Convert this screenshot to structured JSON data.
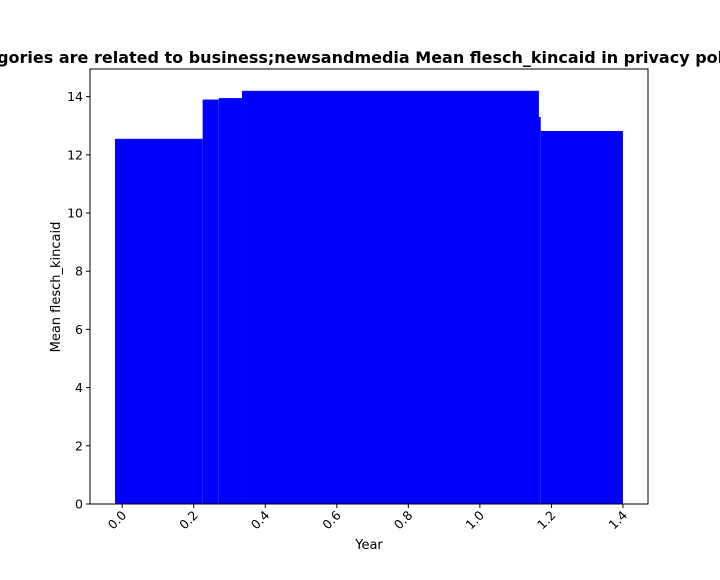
{
  "chart_data": {
    "type": "bar",
    "title": "Categories are related to business;newsandmedia Mean flesch_kincaid in privacy policies",
    "xlabel": "Year",
    "ylabel": "Mean flesch_kincaid",
    "xlim": [
      -0.09,
      1.47
    ],
    "ylim": [
      0,
      14.95
    ],
    "xticks": [
      0.0,
      0.2,
      0.4,
      0.6,
      0.8,
      1.0,
      1.2,
      1.4
    ],
    "xtick_labels": [
      "0.0",
      "0.2",
      "0.4",
      "0.6",
      "0.8",
      "1.0",
      "1.2",
      "1.4"
    ],
    "yticks": [
      0,
      2,
      4,
      6,
      8,
      10,
      12,
      14
    ],
    "ytick_labels": [
      "0",
      "2",
      "4",
      "6",
      "8",
      "10",
      "12",
      "14"
    ],
    "bar_color": "#0000ff",
    "grid": false,
    "bars": [
      {
        "x0": -0.02,
        "x1": 0.225,
        "value": 12.55
      },
      {
        "x0": 0.225,
        "x1": 0.27,
        "value": 13.9
      },
      {
        "x0": 0.27,
        "x1": 0.335,
        "value": 13.95
      },
      {
        "x0": 0.335,
        "x1": 1.165,
        "value": 14.2
      },
      {
        "x0": 1.155,
        "x1": 1.17,
        "value": 13.3
      },
      {
        "x0": 1.17,
        "x1": 1.4,
        "value": 12.82
      }
    ]
  }
}
